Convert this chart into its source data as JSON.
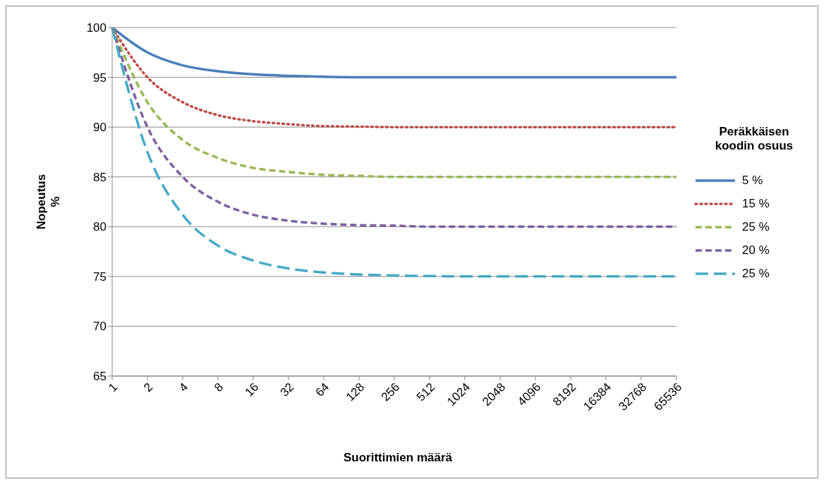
{
  "chart_data": {
    "type": "line",
    "xlabel": "Suorittimien määrä",
    "ylabel": "Nopeutus %",
    "legend_title": "Peräkkäisen koodin osuus",
    "categories": [
      "1",
      "2",
      "4",
      "8",
      "16",
      "32",
      "64",
      "128",
      "256",
      "512",
      "1024",
      "2048",
      "4096",
      "8192",
      "16384",
      "32768",
      "65536"
    ],
    "series": [
      {
        "name": "5 %",
        "color": "#4a7ebb",
        "line_style": "solid",
        "values": [
          100,
          97.5,
          96.2,
          95.6,
          95.3,
          95.15,
          95.05,
          95,
          95,
          95,
          95,
          95,
          95,
          95,
          95,
          95,
          95
        ]
      },
      {
        "name": "15 %",
        "color": "#be4b48",
        "line_style": "dotted",
        "values": [
          100,
          95,
          92.5,
          91.2,
          90.6,
          90.3,
          90.1,
          90.05,
          90,
          90,
          90,
          90,
          90,
          90,
          90,
          90,
          90
        ]
      },
      {
        "name": "25 %",
        "color": "#98b954",
        "line_style": "dashed",
        "values": [
          100,
          92.5,
          88.7,
          86.9,
          85.9,
          85.5,
          85.2,
          85.1,
          85,
          85,
          85,
          85,
          85,
          85,
          85,
          85,
          85
        ]
      },
      {
        "name": "20 %",
        "color": "#7d60a0",
        "line_style": "dashed",
        "values": [
          100,
          90,
          85,
          82.5,
          81.2,
          80.6,
          80.3,
          80.15,
          80.1,
          80,
          80,
          80,
          80,
          80,
          80,
          80,
          80
        ]
      },
      {
        "name": "25 %",
        "color": "#46aac5",
        "line_style": "longdash",
        "values": [
          100,
          87.5,
          81.2,
          78.1,
          76.6,
          75.8,
          75.4,
          75.2,
          75.1,
          75.05,
          75,
          75,
          75,
          75,
          75,
          75,
          75
        ]
      }
    ],
    "ylim": [
      65,
      100
    ],
    "yticks": [
      65,
      70,
      75,
      80,
      85,
      90,
      95,
      100
    ],
    "grid": "y",
    "legend": "right",
    "marker": "none"
  }
}
